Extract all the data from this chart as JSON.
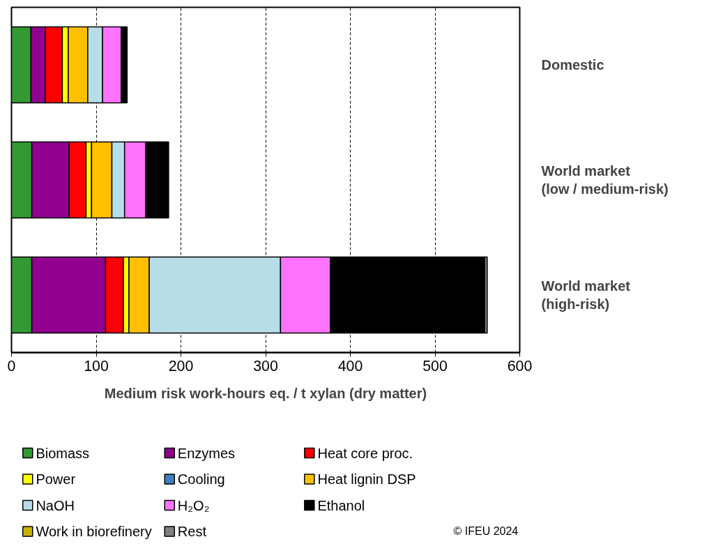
{
  "chart_data": {
    "type": "bar",
    "orientation": "horizontal",
    "stacked": true,
    "categories": [
      "Domestic",
      "World market\n(low / medium-risk)",
      "World market\n(high-risk)"
    ],
    "xlabel": "Medium risk work-hours eq. / t xylan (dry matter)",
    "xlim": [
      0,
      600
    ],
    "xticks": [
      0,
      100,
      200,
      300,
      400,
      500,
      600
    ],
    "grid": "x",
    "legend": "bottom",
    "annotations": [
      "© IFEU 2024"
    ],
    "series": [
      {
        "name": "Biomass",
        "color": "#339933",
        "values": [
          23,
          24,
          24
        ]
      },
      {
        "name": "Enzymes",
        "color": "#920090",
        "values": [
          17,
          44,
          87
        ]
      },
      {
        "name": "Heat core proc.",
        "color": "#ff0000",
        "values": [
          20,
          20,
          21
        ]
      },
      {
        "name": "Power",
        "color": "#ffff00",
        "values": [
          7,
          6.5,
          6.6
        ]
      },
      {
        "name": "Cooling",
        "color": "#3f7fbf",
        "values": [
          0,
          0,
          0
        ]
      },
      {
        "name": "Heat lignin DSP",
        "color": "#ffc000",
        "values": [
          23,
          24,
          24
        ]
      },
      {
        "name": "NaOH",
        "color": "#b7dde8",
        "values": [
          17.5,
          15,
          155
        ]
      },
      {
        "name": "H₂O₂",
        "color": "#ff73ff",
        "values": [
          22,
          25,
          59
        ]
      },
      {
        "name": "Ethanol",
        "color": "#000000",
        "values": [
          7,
          27,
          182
        ]
      },
      {
        "name": "Work in biorefinery",
        "color": "#c8b400",
        "values": [
          0,
          0,
          0
        ]
      },
      {
        "name": "Rest",
        "color": "#808080",
        "values": [
          0,
          0,
          3
        ]
      }
    ]
  }
}
